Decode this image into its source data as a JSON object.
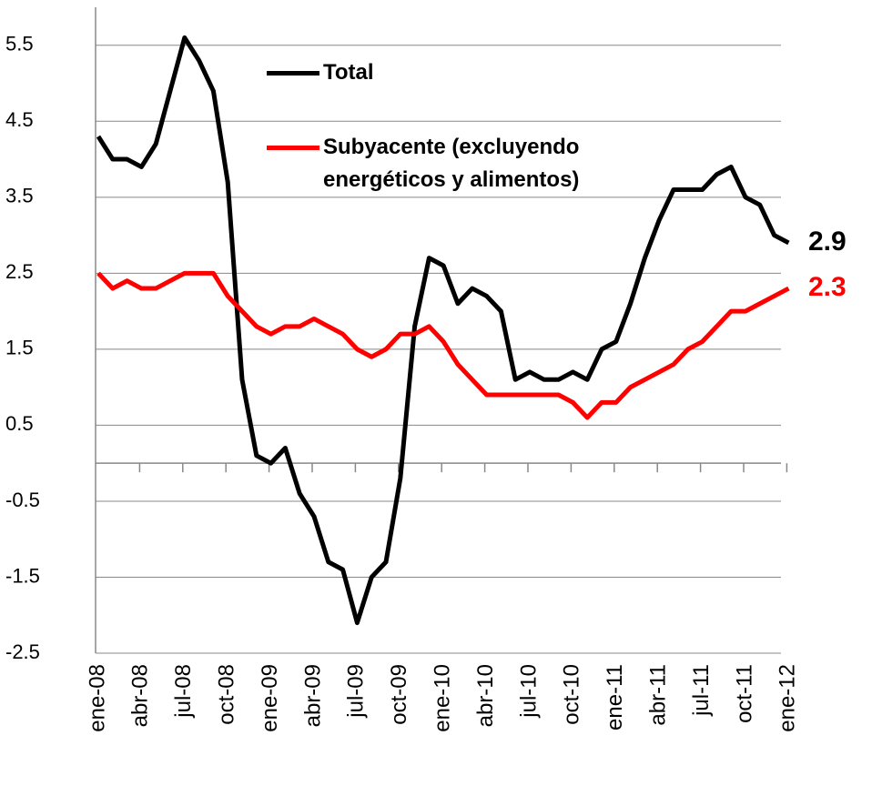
{
  "chart_data": {
    "type": "line",
    "categories": [
      "ene-08",
      null,
      null,
      "abr-08",
      null,
      null,
      "jul-08",
      null,
      null,
      "oct-08",
      null,
      null,
      "ene-09",
      null,
      null,
      "abr-09",
      null,
      null,
      "jul-09",
      null,
      null,
      "oct-09",
      null,
      null,
      "ene-10",
      null,
      null,
      "abr-10",
      null,
      null,
      "jul-10",
      null,
      null,
      "oct-10",
      null,
      null,
      "ene-11",
      null,
      null,
      "abr-11",
      null,
      null,
      "jul-11",
      null,
      null,
      "oct-11",
      null,
      null,
      "ene-12"
    ],
    "series": [
      {
        "name": "Total",
        "color": "#000000",
        "values": [
          4.3,
          4.0,
          4.0,
          3.9,
          4.2,
          4.9,
          5.6,
          5.3,
          4.9,
          3.7,
          1.1,
          0.1,
          0.0,
          0.2,
          -0.4,
          -0.7,
          -1.3,
          -1.4,
          -2.1,
          -1.5,
          -1.3,
          -0.2,
          1.8,
          2.7,
          2.6,
          2.1,
          2.3,
          2.2,
          2.0,
          1.1,
          1.2,
          1.1,
          1.1,
          1.2,
          1.1,
          1.5,
          1.6,
          2.1,
          2.7,
          3.2,
          3.6,
          3.6,
          3.6,
          3.8,
          3.9,
          3.5,
          3.4,
          3.0,
          2.9
        ]
      },
      {
        "name": "Subyacente (excluyendo energéticos y alimentos)",
        "color": "#ff0000",
        "values": [
          2.5,
          2.3,
          2.4,
          2.3,
          2.3,
          2.4,
          2.5,
          2.5,
          2.5,
          2.2,
          2.0,
          1.8,
          1.7,
          1.8,
          1.8,
          1.9,
          1.8,
          1.7,
          1.5,
          1.4,
          1.5,
          1.7,
          1.7,
          1.8,
          1.6,
          1.3,
          1.1,
          0.9,
          0.9,
          0.9,
          0.9,
          0.9,
          0.9,
          0.8,
          0.6,
          0.8,
          0.8,
          1.0,
          1.1,
          1.2,
          1.3,
          1.5,
          1.6,
          1.8,
          2.0,
          2.0,
          2.1,
          2.2,
          2.3
        ]
      }
    ],
    "ylim": [
      -2.5,
      6
    ],
    "yticks": [
      -2.5,
      -1.5,
      -0.5,
      0.5,
      1.5,
      2.5,
      3.5,
      4.5,
      5.5
    ],
    "grid": true
  }
}
